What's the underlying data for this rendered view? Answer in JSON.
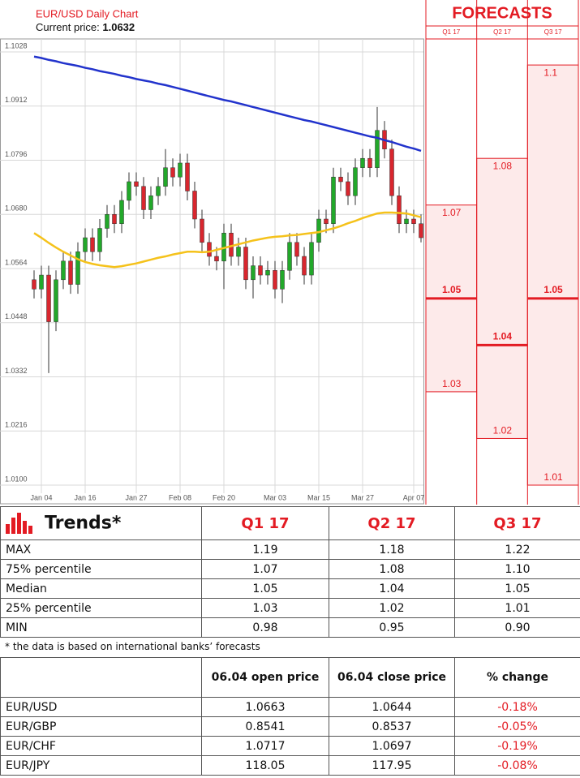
{
  "chart_data": {
    "type": "candlestick",
    "title": "EUR/USD Daily Chart",
    "subtitle": "Current price:",
    "current_price": 1.0632,
    "categories": [
      null,
      "Jan 04",
      null,
      null,
      null,
      null,
      null,
      "Jan 16",
      null,
      null,
      null,
      null,
      null,
      null,
      "Jan 27",
      null,
      null,
      null,
      null,
      null,
      "Feb 08",
      null,
      null,
      null,
      null,
      null,
      "Feb 20",
      null,
      null,
      null,
      null,
      null,
      null,
      "Mar 03",
      null,
      null,
      null,
      null,
      null,
      "Mar 15",
      null,
      null,
      null,
      null,
      null,
      "Mar 27",
      null,
      null,
      null,
      null,
      null,
      null,
      "Apr 07",
      null
    ],
    "open": [
      1.054,
      1.052,
      1.055,
      1.045,
      1.054,
      1.058,
      1.053,
      1.06,
      1.063,
      1.06,
      1.065,
      1.068,
      1.066,
      1.071,
      1.075,
      1.074,
      1.069,
      1.072,
      1.074,
      1.078,
      1.076,
      1.079,
      1.073,
      1.067,
      1.062,
      1.059,
      1.058,
      1.064,
      1.059,
      1.061,
      1.054,
      1.057,
      1.055,
      1.056,
      1.052,
      1.056,
      1.062,
      1.059,
      1.055,
      1.062,
      1.067,
      1.066,
      1.076,
      1.075,
      1.072,
      1.078,
      1.08,
      1.078,
      1.086,
      1.082,
      1.072,
      1.066,
      1.067,
      1.066
    ],
    "high": [
      1.056,
      1.057,
      1.057,
      1.056,
      1.06,
      1.06,
      1.062,
      1.065,
      1.065,
      1.067,
      1.07,
      1.07,
      1.073,
      1.077,
      1.077,
      1.076,
      1.074,
      1.076,
      1.082,
      1.08,
      1.081,
      1.081,
      1.075,
      1.069,
      1.064,
      1.061,
      1.066,
      1.066,
      1.063,
      1.063,
      1.059,
      1.059,
      1.058,
      1.058,
      1.058,
      1.064,
      1.064,
      1.061,
      1.064,
      1.069,
      1.069,
      1.078,
      1.078,
      1.077,
      1.08,
      1.082,
      1.082,
      1.091,
      1.088,
      1.084,
      1.074,
      1.069,
      1.069,
      1.068
    ],
    "low": [
      1.05,
      1.05,
      1.034,
      1.043,
      1.052,
      1.051,
      1.051,
      1.058,
      1.058,
      1.058,
      1.063,
      1.064,
      1.064,
      1.069,
      1.072,
      1.067,
      1.067,
      1.07,
      1.072,
      1.074,
      1.074,
      1.071,
      1.065,
      1.06,
      1.057,
      1.056,
      1.052,
      1.057,
      1.057,
      1.052,
      1.05,
      1.053,
      1.053,
      1.05,
      1.049,
      1.054,
      1.057,
      1.053,
      1.053,
      1.06,
      1.064,
      1.064,
      1.073,
      1.07,
      1.07,
      1.076,
      1.076,
      1.076,
      1.08,
      1.07,
      1.064,
      1.064,
      1.064,
      1.062
    ],
    "close": [
      1.052,
      1.055,
      1.045,
      1.054,
      1.058,
      1.053,
      1.06,
      1.063,
      1.06,
      1.065,
      1.068,
      1.066,
      1.071,
      1.075,
      1.074,
      1.069,
      1.072,
      1.074,
      1.078,
      1.076,
      1.079,
      1.073,
      1.067,
      1.062,
      1.059,
      1.058,
      1.064,
      1.059,
      1.061,
      1.054,
      1.057,
      1.055,
      1.056,
      1.052,
      1.056,
      1.062,
      1.059,
      1.055,
      1.062,
      1.067,
      1.066,
      1.076,
      1.075,
      1.072,
      1.078,
      1.08,
      1.078,
      1.086,
      1.082,
      1.072,
      1.066,
      1.067,
      1.066,
      1.063
    ],
    "up_color": "#22a82a",
    "down_color": "#d8262e",
    "lines": [
      {
        "color": "#2233cc",
        "values": [
          1.1018,
          1.1015,
          1.1011,
          1.1008,
          1.1004,
          1.1001,
          1.0998,
          1.0994,
          1.0991,
          1.0987,
          1.0984,
          1.0981,
          1.0977,
          1.0974,
          1.097,
          1.0967,
          1.0964,
          1.096,
          1.0957,
          1.0953,
          1.0949,
          1.0945,
          1.0941,
          1.0937,
          1.0933,
          1.0929,
          1.0925,
          1.0922,
          1.0918,
          1.0914,
          1.091,
          1.0906,
          1.0902,
          1.0898,
          1.0894,
          1.089,
          1.0886,
          1.0882,
          1.0879,
          1.0875,
          1.0871,
          1.0867,
          1.0863,
          1.0859,
          1.0855,
          1.0851,
          1.0847,
          1.0844,
          1.0839,
          1.0835,
          1.083,
          1.0825,
          1.0821,
          1.0816
        ]
      },
      {
        "color": "#f5c21b",
        "values": [
          1.064,
          1.063,
          1.0619,
          1.0609,
          1.06,
          1.0592,
          1.0584,
          1.0578,
          1.0574,
          1.0571,
          1.0569,
          1.0567,
          1.0569,
          1.0572,
          1.0575,
          1.0579,
          1.0583,
          1.0587,
          1.059,
          1.0594,
          1.0597,
          1.06,
          1.06,
          1.0599,
          1.06,
          1.0604,
          1.0608,
          1.0612,
          1.0616,
          1.062,
          1.0624,
          1.0627,
          1.063,
          1.0632,
          1.0633,
          1.0635,
          1.0636,
          1.0638,
          1.064,
          1.0642,
          1.0646,
          1.065,
          1.0655,
          1.0661,
          1.0666,
          1.0672,
          1.0677,
          1.0682,
          1.0684,
          1.0684,
          1.0683,
          1.0682,
          1.0678,
          1.0674
        ]
      }
    ],
    "ylim": [
      1.01,
      1.1028
    ],
    "yticks": [
      1.1028,
      1.0912,
      1.0796,
      {
        "value": 1.068,
        "label": "1.0680"
      },
      1.0564,
      1.0448,
      1.0332,
      1.0216,
      {
        "value": 1.01,
        "label": "1.0100"
      }
    ],
    "grid": true,
    "forecasts_title": "FORECASTS",
    "forecasts": [
      {
        "label": "Q1 17",
        "high": 1.07,
        "median": 1.05,
        "low": 1.03
      },
      {
        "label": "Q2 17",
        "high": 1.08,
        "median": 1.04,
        "low": 1.02
      },
      {
        "label": "Q3 17",
        "high": 1.1,
        "median": 1.05,
        "low": 1.01
      }
    ],
    "forecast_color": "#e31b23"
  },
  "trends": {
    "title": "Trends*",
    "columns": [
      "Q1 17",
      "Q2 17",
      "Q3 17"
    ],
    "rows": [
      [
        "MAX",
        "1.19",
        "1.18",
        "1.22"
      ],
      [
        "75% percentile",
        "1.07",
        "1.08",
        "1.10"
      ],
      [
        "Median",
        "1.05",
        "1.04",
        "1.05"
      ],
      [
        "25% percentile",
        "1.03",
        "1.02",
        "1.01"
      ],
      [
        "MIN",
        "0.98",
        "0.95",
        "0.90"
      ]
    ]
  },
  "footnote": "* the data is based on international banks’ forecasts",
  "prices": {
    "columns": [
      "06.04 open price",
      "06.04 close price",
      "% change"
    ],
    "rows": [
      [
        "EUR/USD",
        "1.0663",
        "1.0644",
        "-0.18%"
      ],
      [
        "EUR/GBP",
        "0.8541",
        "0.8537",
        "-0.05%"
      ],
      [
        "EUR/CHF",
        "1.0717",
        "1.0697",
        "-0.19%"
      ],
      [
        "EUR/JPY",
        "118.05",
        "117.95",
        "-0.08%"
      ]
    ]
  }
}
